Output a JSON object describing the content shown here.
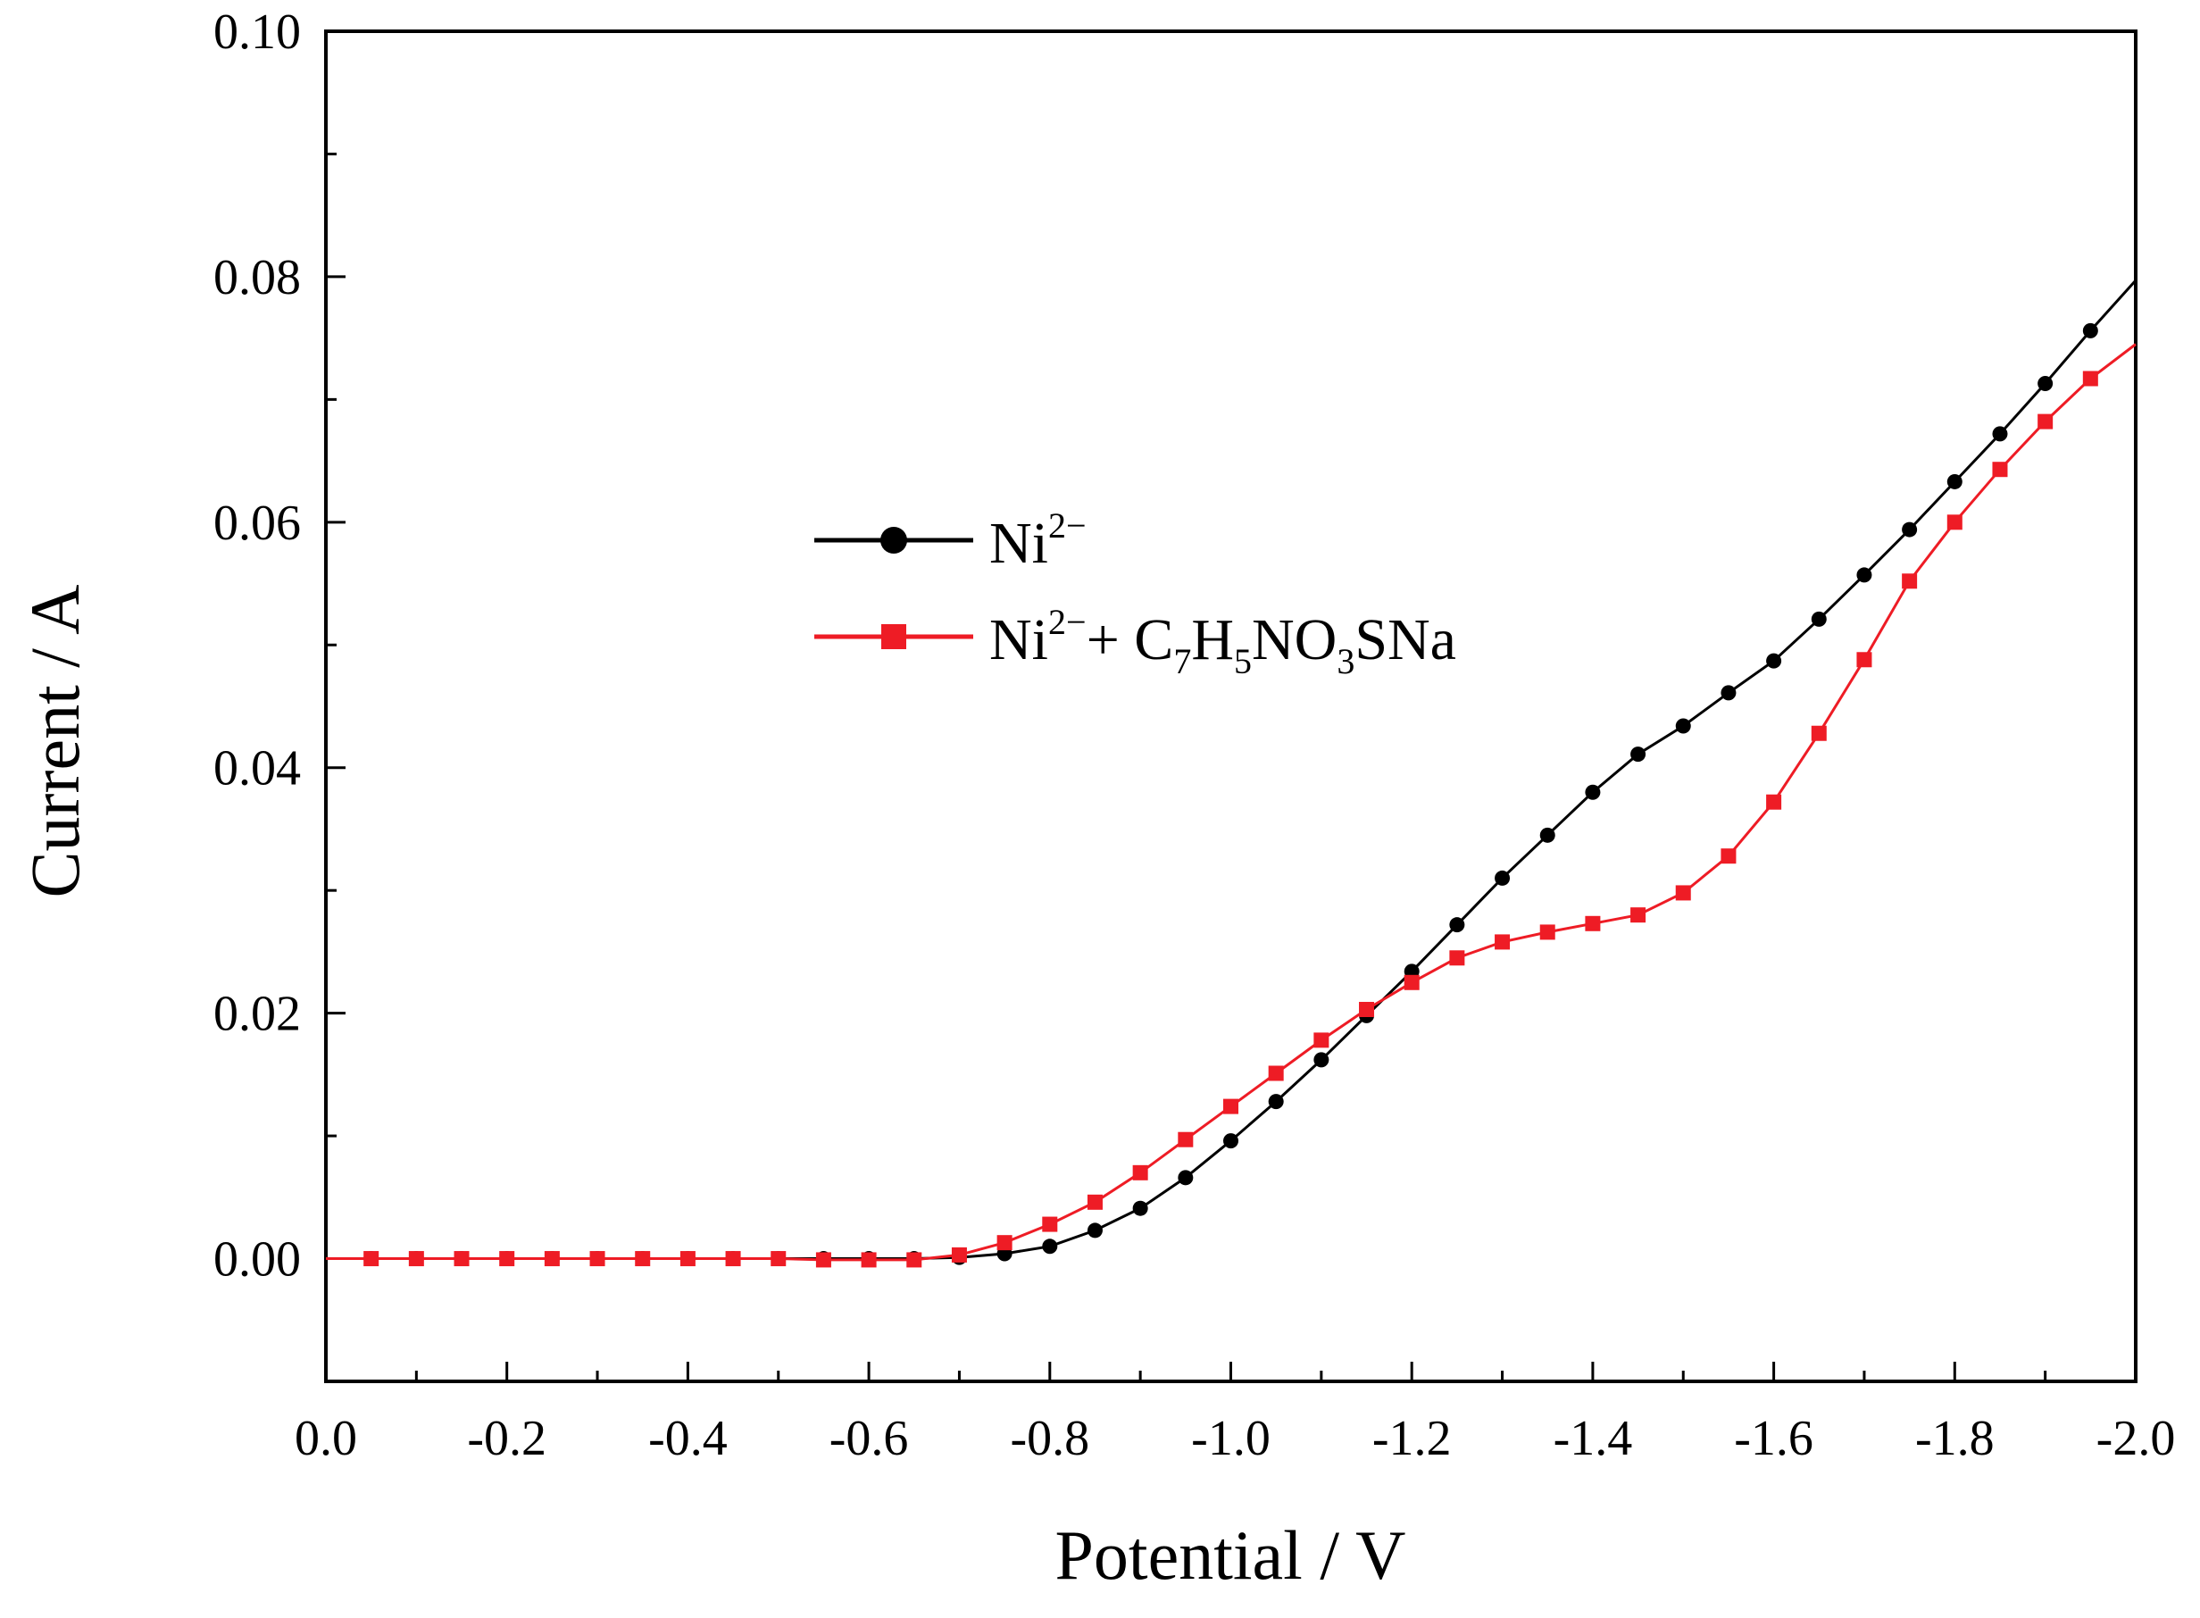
{
  "chart_data": {
    "type": "line",
    "xlabel": "Potential / V",
    "ylabel": "Current / A",
    "xlim": [
      0.0,
      -2.0
    ],
    "ylim": [
      -0.01,
      0.1
    ],
    "x_ticks": [
      0.0,
      -0.2,
      -0.4,
      -0.6,
      -0.8,
      -1.0,
      -1.2,
      -1.4,
      -1.6,
      -1.8,
      -2.0
    ],
    "x_tick_labels": [
      "0.0",
      "-0.2",
      "-0.4",
      "-0.6",
      "-0.8",
      "-1.0",
      "-1.2",
      "-1.4",
      "-1.6",
      "-1.8",
      "-2.0"
    ],
    "y_ticks": [
      0.0,
      0.02,
      0.04,
      0.06,
      0.08,
      0.1
    ],
    "y_tick_labels": [
      "0.00",
      "0.02",
      "0.04",
      "0.06",
      "0.08",
      "0.10"
    ],
    "legend_position": "center-left",
    "series": [
      {
        "name": "Ni2−",
        "legend": {
          "base": "Ni",
          "sup": "2−"
        },
        "color": "#000000",
        "marker": "circle",
        "x": [
          0.0,
          -0.05,
          -0.1,
          -0.15,
          -0.2,
          -0.25,
          -0.3,
          -0.35,
          -0.4,
          -0.45,
          -0.5,
          -0.55,
          -0.6,
          -0.65,
          -0.7,
          -0.75,
          -0.8,
          -0.85,
          -0.9,
          -0.95,
          -1.0,
          -1.05,
          -1.1,
          -1.15,
          -1.2,
          -1.25,
          -1.3,
          -1.35,
          -1.4,
          -1.45,
          -1.5,
          -1.55,
          -1.6,
          -1.65,
          -1.7,
          -1.75,
          -1.8,
          -1.85,
          -1.9,
          -1.95,
          -2.0
        ],
        "y": [
          0.0,
          0.0,
          0.0,
          0.0,
          0.0,
          0.0,
          0.0,
          0.0,
          0.0,
          0.0,
          0.0,
          0.0,
          0.0,
          0.0,
          0.0001,
          0.0004,
          0.001,
          0.0023,
          0.0041,
          0.0066,
          0.0096,
          0.0128,
          0.0162,
          0.0198,
          0.0234,
          0.0272,
          0.031,
          0.0345,
          0.038,
          0.0411,
          0.0434,
          0.0461,
          0.0487,
          0.0521,
          0.0557,
          0.0594,
          0.0633,
          0.0672,
          0.0713,
          0.0756,
          0.0797
        ],
        "marker_x": [
          -0.05,
          -0.1,
          -0.15,
          -0.2,
          -0.25,
          -0.3,
          -0.35,
          -0.4,
          -0.45,
          -0.5,
          -0.55,
          -0.6,
          -0.65,
          -0.7,
          -0.75,
          -0.8,
          -0.85,
          -0.9,
          -0.95,
          -1.0,
          -1.05,
          -1.1,
          -1.15,
          -1.2,
          -1.25,
          -1.3,
          -1.35,
          -1.4,
          -1.45,
          -1.5,
          -1.55,
          -1.6,
          -1.65,
          -1.7,
          -1.75,
          -1.8,
          -1.85,
          -1.9,
          -1.95
        ]
      },
      {
        "name": "Ni2−+ C7H5NO3SNa",
        "legend": {
          "base": "Ni",
          "sup": "2−",
          "plus": "+ C",
          "c_sub": "7",
          "h": "H",
          "h_sub": "5",
          "no": "NO",
          "o_sub": "3",
          "rest": "SNa"
        },
        "color": "#ee1c25",
        "marker": "square",
        "x": [
          0.0,
          -0.05,
          -0.1,
          -0.15,
          -0.2,
          -0.25,
          -0.3,
          -0.35,
          -0.4,
          -0.45,
          -0.5,
          -0.55,
          -0.6,
          -0.65,
          -0.7,
          -0.75,
          -0.8,
          -0.85,
          -0.9,
          -0.95,
          -1.0,
          -1.05,
          -1.1,
          -1.15,
          -1.2,
          -1.25,
          -1.3,
          -1.35,
          -1.4,
          -1.45,
          -1.5,
          -1.55,
          -1.6,
          -1.65,
          -1.7,
          -1.75,
          -1.8,
          -1.85,
          -1.9,
          -1.95,
          -2.0
        ],
        "y": [
          0.0,
          0.0,
          0.0,
          0.0,
          0.0,
          0.0,
          0.0,
          0.0,
          0.0,
          0.0,
          0.0,
          -0.0001,
          -0.0001,
          -0.0001,
          0.0003,
          0.0013,
          0.0028,
          0.0046,
          0.007,
          0.0097,
          0.0124,
          0.0151,
          0.0178,
          0.0203,
          0.0225,
          0.0245,
          0.0258,
          0.0266,
          0.0273,
          0.028,
          0.0298,
          0.0328,
          0.0372,
          0.0428,
          0.0488,
          0.0552,
          0.06,
          0.0643,
          0.0682,
          0.0717,
          0.0745
        ],
        "marker_x": [
          -0.05,
          -0.1,
          -0.15,
          -0.2,
          -0.25,
          -0.3,
          -0.35,
          -0.4,
          -0.45,
          -0.5,
          -0.55,
          -0.6,
          -0.65,
          -0.7,
          -0.75,
          -0.8,
          -0.85,
          -0.9,
          -0.95,
          -1.0,
          -1.05,
          -1.1,
          -1.15,
          -1.2,
          -1.25,
          -1.3,
          -1.35,
          -1.4,
          -1.45,
          -1.5,
          -1.55,
          -1.6,
          -1.65,
          -1.7,
          -1.75,
          -1.8,
          -1.85,
          -1.9,
          -1.95
        ]
      }
    ]
  }
}
